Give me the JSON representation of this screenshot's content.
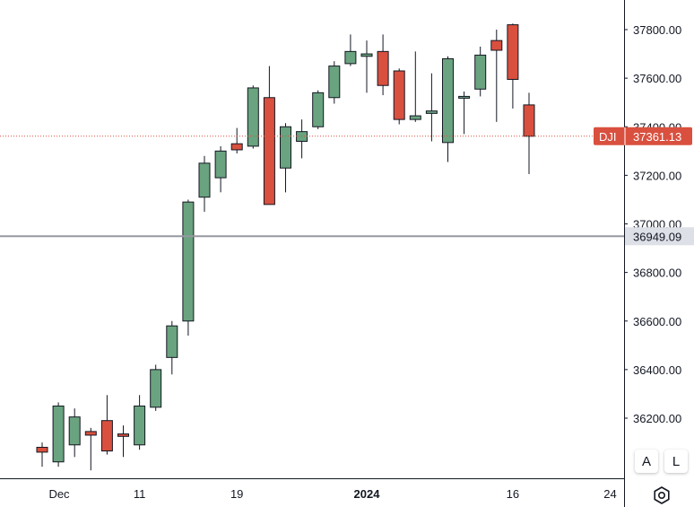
{
  "chart_data": {
    "type": "candlestick",
    "symbol": "DJI",
    "last_price": "37361.13",
    "reference_line_value": "36949.09",
    "y_ticks": [
      "37800.00",
      "37600.00",
      "37400.00",
      "37200.00",
      "37000.00",
      "36800.00",
      "36600.00",
      "36400.00",
      "36200.00"
    ],
    "x_ticks": [
      {
        "label": "Dec",
        "bold": false,
        "index": 0
      },
      {
        "label": "11",
        "bold": false,
        "index": 6
      },
      {
        "label": "19",
        "bold": false,
        "index": 12
      },
      {
        "label": "2024",
        "bold": true,
        "index": 20
      },
      {
        "label": "16",
        "bold": false,
        "index": 29
      },
      {
        "label": "24",
        "bold": false,
        "index": 35
      }
    ],
    "ylim": [
      36000,
      37860
    ],
    "candles": [
      {
        "o": 36080,
        "h": 36100,
        "l": 36000,
        "c": 36060
      },
      {
        "o": 36020,
        "h": 36265,
        "l": 36000,
        "c": 36250
      },
      {
        "o": 36090,
        "h": 36240,
        "l": 36040,
        "c": 36205
      },
      {
        "o": 36145,
        "h": 36160,
        "l": 35985,
        "c": 36130
      },
      {
        "o": 36190,
        "h": 36295,
        "l": 36050,
        "c": 36065
      },
      {
        "o": 36135,
        "h": 36170,
        "l": 36040,
        "c": 36125
      },
      {
        "o": 36090,
        "h": 36295,
        "l": 36070,
        "c": 36250
      },
      {
        "o": 36245,
        "h": 36420,
        "l": 36230,
        "c": 36400
      },
      {
        "o": 36450,
        "h": 36600,
        "l": 36380,
        "c": 36580
      },
      {
        "o": 36600,
        "h": 37100,
        "l": 36540,
        "c": 37090
      },
      {
        "o": 37110,
        "h": 37280,
        "l": 37050,
        "c": 37250
      },
      {
        "o": 37190,
        "h": 37320,
        "l": 37130,
        "c": 37300
      },
      {
        "o": 37330,
        "h": 37395,
        "l": 37290,
        "c": 37305
      },
      {
        "o": 37320,
        "h": 37570,
        "l": 37310,
        "c": 37560
      },
      {
        "o": 37520,
        "h": 37650,
        "l": 37080,
        "c": 37080
      },
      {
        "o": 37230,
        "h": 37415,
        "l": 37130,
        "c": 37400
      },
      {
        "o": 37340,
        "h": 37430,
        "l": 37270,
        "c": 37380
      },
      {
        "o": 37400,
        "h": 37550,
        "l": 37390,
        "c": 37540
      },
      {
        "o": 37520,
        "h": 37670,
        "l": 37495,
        "c": 37650
      },
      {
        "o": 37660,
        "h": 37780,
        "l": 37650,
        "c": 37710
      },
      {
        "o": 37690,
        "h": 37755,
        "l": 37540,
        "c": 37700
      },
      {
        "o": 37710,
        "h": 37780,
        "l": 37530,
        "c": 37570
      },
      {
        "o": 37630,
        "h": 37640,
        "l": 37410,
        "c": 37430
      },
      {
        "o": 37430,
        "h": 37710,
        "l": 37420,
        "c": 37445
      },
      {
        "o": 37455,
        "h": 37620,
        "l": 37340,
        "c": 37465
      },
      {
        "o": 37335,
        "h": 37690,
        "l": 37255,
        "c": 37680
      },
      {
        "o": 37520,
        "h": 37545,
        "l": 37370,
        "c": 37525
      },
      {
        "o": 37555,
        "h": 37730,
        "l": 37525,
        "c": 37695
      },
      {
        "o": 37755,
        "h": 37800,
        "l": 37420,
        "c": 37715
      },
      {
        "o": 37820,
        "h": 37825,
        "l": 37475,
        "c": 37595
      },
      {
        "o": 37490,
        "h": 37540,
        "l": 37205,
        "c": 37361
      }
    ],
    "colors": {
      "up": "#6ba583",
      "down": "#d75442",
      "wick": "#131722",
      "up_fill": "#6aa37f",
      "down_fill": "#d9503f"
    }
  },
  "controls": {
    "auto_label": "A",
    "log_label": "L",
    "settings_icon": "gear-icon"
  },
  "colors": {
    "price_tag": "#d9503f",
    "ref_tag": "#dde0e7",
    "ref_line": "#9598a1",
    "grid_border": "#131722"
  }
}
